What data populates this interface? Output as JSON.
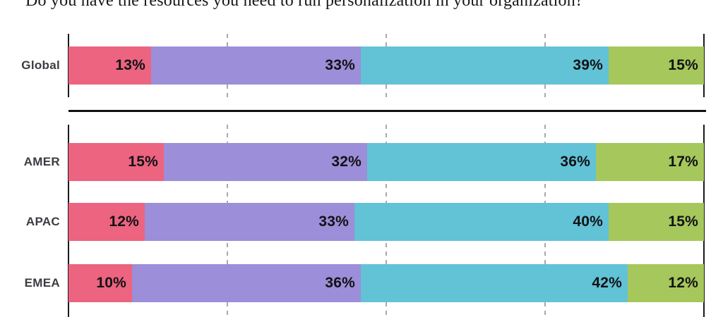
{
  "title": "Do you have the resources you need to run personalization in your organization?",
  "chart_data": {
    "type": "bar",
    "stacked": true,
    "orientation": "horizontal",
    "unit": "%",
    "xlim": [
      0,
      100
    ],
    "grid_on": true,
    "gridlines_dashed_at": [
      25,
      50,
      75
    ],
    "axis_solid_at": [
      0,
      100
    ],
    "colors": [
      "#EC6480",
      "#9C8ED8",
      "#62C2D6",
      "#A6C75B"
    ],
    "axis_color": "#1A1A1D",
    "grid_color": "#A9A9AD",
    "label_color": "#3B3B42",
    "value_color": "#121215",
    "groups": [
      {
        "name": "global",
        "rows": [
          {
            "label": "Global",
            "values": [
              13,
              33,
              39,
              15
            ]
          }
        ]
      },
      {
        "name": "regions",
        "rows": [
          {
            "label": "AMER",
            "values": [
              15,
              32,
              36,
              17
            ]
          },
          {
            "label": "APAC",
            "values": [
              12,
              33,
              40,
              15
            ]
          },
          {
            "label": "EMEA",
            "values": [
              10,
              36,
              42,
              12
            ]
          }
        ]
      }
    ]
  }
}
